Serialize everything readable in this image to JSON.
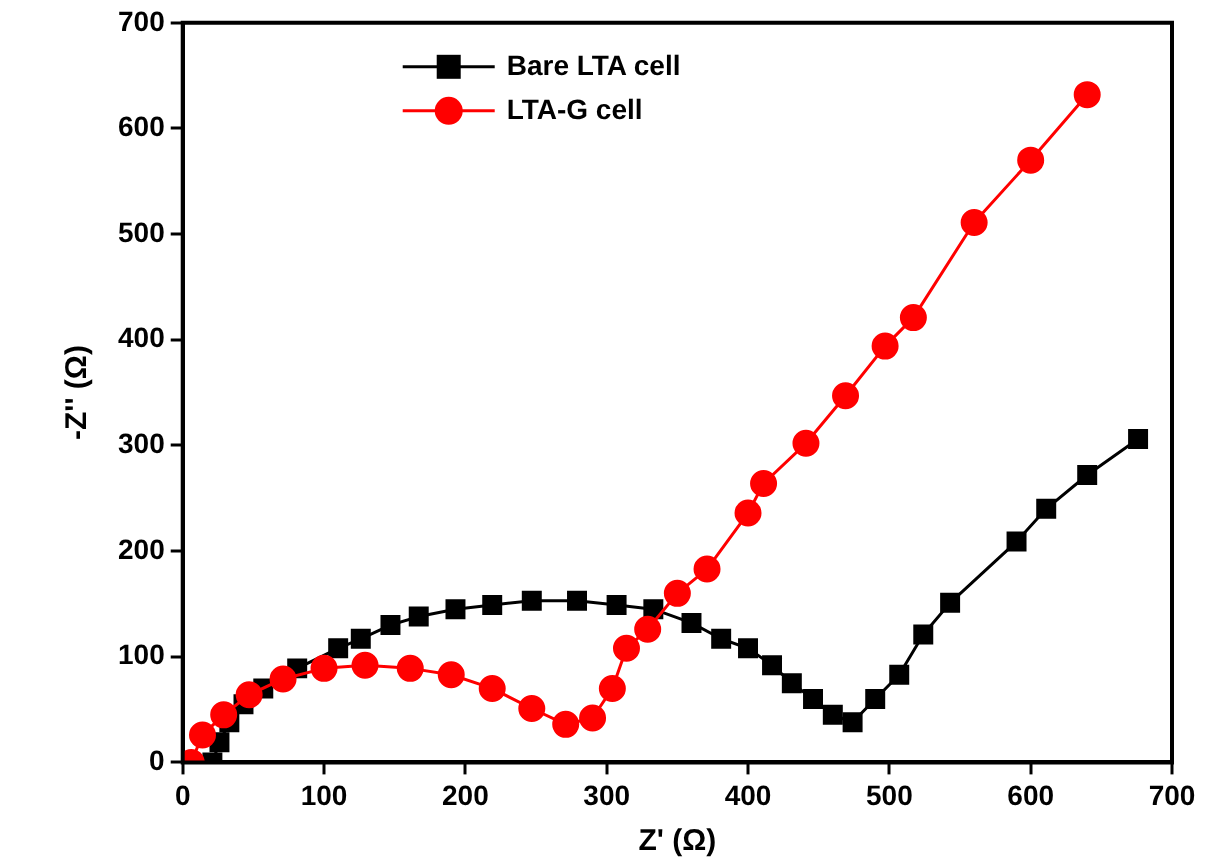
{
  "chart_data": {
    "type": "line",
    "xlabel": "Z' (Ω)",
    "ylabel": "-Z'' (Ω)",
    "xlim": [
      0,
      700
    ],
    "ylim": [
      0,
      700
    ],
    "xticks": [
      0,
      100,
      200,
      300,
      400,
      500,
      600,
      700
    ],
    "yticks": [
      0,
      100,
      200,
      300,
      400,
      500,
      600,
      700
    ],
    "grid": false,
    "legend": "top left",
    "line_style": "solid",
    "series": [
      {
        "name": "Bare LTA cell",
        "color": "#000000",
        "marker": "square",
        "x": [
          21,
          26,
          33,
          43,
          57,
          81,
          110,
          126,
          147,
          167,
          193,
          219,
          247,
          279,
          307,
          333,
          360,
          381,
          400,
          417,
          431,
          446,
          460,
          474,
          490,
          507,
          524,
          543,
          590,
          611,
          640,
          676
        ],
        "values": [
          0,
          19,
          38,
          55,
          70,
          89,
          108,
          117,
          130,
          138,
          145,
          149,
          153,
          153,
          149,
          145,
          132,
          117,
          108,
          92,
          75,
          60,
          45,
          38,
          60,
          83,
          121,
          151,
          209,
          240,
          272,
          306
        ]
      },
      {
        "name": "LTA-G cell",
        "color": "#ff0000",
        "marker": "circle",
        "x": [
          6,
          14,
          29,
          47,
          71,
          100,
          129,
          161,
          190,
          219,
          247,
          271,
          290,
          304,
          314,
          329,
          350,
          371,
          400,
          411,
          441,
          469,
          497,
          517,
          560,
          600,
          640
        ],
        "values": [
          0,
          26,
          45,
          64,
          79,
          89,
          92,
          89,
          83,
          70,
          51,
          36,
          42,
          70,
          108,
          126,
          160,
          183,
          236,
          264,
          302,
          347,
          394,
          421,
          511,
          570,
          632
        ]
      }
    ]
  }
}
